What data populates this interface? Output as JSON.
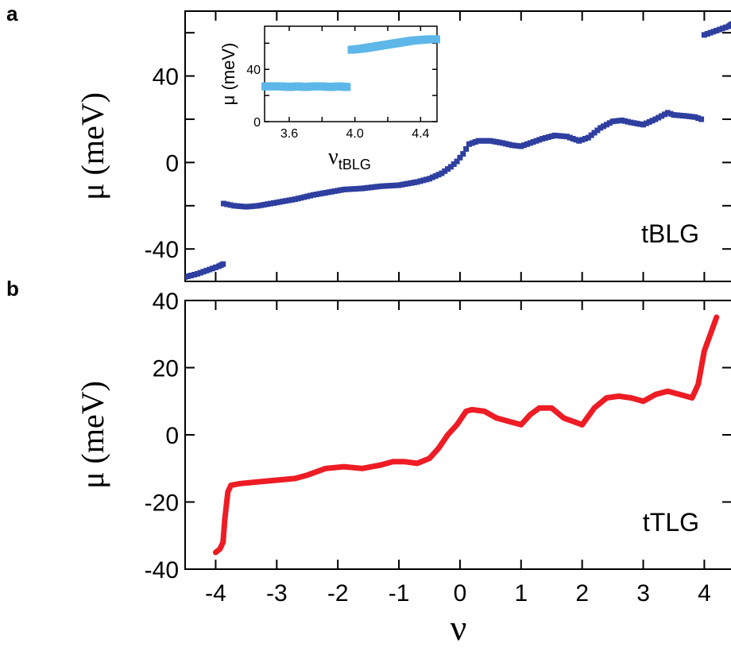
{
  "panels": {
    "a_label": "a",
    "b_label": "b"
  },
  "colors": {
    "tblg": "#2e3fa0",
    "inset": "#5db7e8",
    "ttlg": "#ee1c24"
  },
  "chart_data": [
    {
      "type": "scatter",
      "panel": "a",
      "ylabel": "μ (meV)",
      "xlabel": "",
      "annotation": "tBLG",
      "xlim": [
        -4.5,
        4.45
      ],
      "ylim": [
        -55,
        70
      ],
      "xticks": [
        -4,
        -3,
        -2,
        -1,
        0,
        1,
        2,
        3,
        4
      ],
      "yticks": [
        -40,
        0,
        40
      ],
      "ytick_labels": [
        "-40",
        "0",
        "40"
      ],
      "series": [
        {
          "x": [
            -4.5,
            -4.3,
            -4.1,
            -3.95,
            -3.88,
            -3.87,
            -3.7,
            -3.5,
            -3.3,
            -3.0,
            -2.7,
            -2.4,
            -2.1,
            -1.9,
            -1.6,
            -1.3,
            -1.0,
            -0.7,
            -0.5,
            -0.3,
            -0.15,
            -0.05,
            0.05,
            0.15,
            0.3,
            0.5,
            0.7,
            0.85,
            1.0,
            1.15,
            1.35,
            1.55,
            1.75,
            1.95,
            2.1,
            2.3,
            2.5,
            2.65,
            2.8,
            3.0,
            3.2,
            3.4,
            3.5,
            3.7,
            3.85,
            3.95
          ],
          "y": [
            -53,
            -51.5,
            -49.5,
            -48,
            -47,
            -19,
            -20,
            -20.5,
            -20,
            -18.5,
            -17,
            -15,
            -13.5,
            -12.5,
            -12,
            -11,
            -10.5,
            -9,
            -7.5,
            -5,
            -2,
            0.5,
            4,
            8.5,
            10,
            10,
            9,
            8,
            7.5,
            9,
            11,
            12.5,
            12,
            10,
            11.5,
            16,
            19,
            19.5,
            18.5,
            17.5,
            20,
            23,
            22,
            21.5,
            21,
            20
          ]
        },
        {
          "x": [
            4.0,
            4.1,
            4.2,
            4.3,
            4.4,
            4.45
          ],
          "y": [
            59,
            60,
            61,
            62,
            63,
            64
          ]
        }
      ]
    },
    {
      "type": "scatter",
      "panel": "a-inset",
      "ylabel": "μ (meV)",
      "xlabel": "νtBLG",
      "xlabel_main": "ν",
      "xlabel_sub": "tBLG",
      "xlim": [
        3.45,
        4.5
      ],
      "ylim": [
        0,
        73
      ],
      "xticks": [
        3.6,
        4.0,
        4.4
      ],
      "xtick_labels": [
        "3.6",
        "4.0",
        "4.4"
      ],
      "yticks": [
        0,
        40
      ],
      "ytick_labels": [
        "0",
        "40"
      ],
      "series": [
        {
          "x": [
            3.45,
            3.5,
            3.55,
            3.6,
            3.65,
            3.7,
            3.75,
            3.8,
            3.85,
            3.9,
            3.95
          ],
          "y": [
            27,
            27,
            27,
            26.5,
            27,
            26.5,
            27,
            27,
            26.5,
            27,
            26.5
          ]
        },
        {
          "x": [
            3.98,
            4.05,
            4.1,
            4.15,
            4.2,
            4.25,
            4.3,
            4.35,
            4.4,
            4.45,
            4.5
          ],
          "y": [
            55,
            56,
            57,
            58,
            59,
            60,
            61,
            62,
            62.5,
            63,
            63
          ]
        }
      ]
    },
    {
      "type": "line",
      "panel": "b",
      "ylabel": "μ (meV)",
      "xlabel": "ν",
      "annotation": "tTLG",
      "xlim": [
        -4.5,
        4.45
      ],
      "ylim": [
        -40,
        40
      ],
      "xticks": [
        -4,
        -3,
        -2,
        -1,
        0,
        1,
        2,
        3,
        4
      ],
      "xtick_labels": [
        "-4",
        "-3",
        "-2",
        "-1",
        "0",
        "1",
        "2",
        "3",
        "4"
      ],
      "yticks": [
        -40,
        -20,
        0,
        20,
        40
      ],
      "ytick_labels": [
        "-40",
        "-20",
        "0",
        "20",
        "40"
      ],
      "series": [
        {
          "x": [
            -4.0,
            -3.93,
            -3.88,
            -3.85,
            -3.8,
            -3.75,
            -3.6,
            -3.3,
            -3.0,
            -2.7,
            -2.5,
            -2.2,
            -1.9,
            -1.6,
            -1.3,
            -1.1,
            -0.9,
            -0.7,
            -0.5,
            -0.35,
            -0.2,
            -0.05,
            0.1,
            0.2,
            0.4,
            0.6,
            0.8,
            1.0,
            1.15,
            1.3,
            1.5,
            1.7,
            1.85,
            2.0,
            2.2,
            2.4,
            2.6,
            2.8,
            3.0,
            3.2,
            3.4,
            3.6,
            3.8,
            3.9,
            4.0,
            4.1,
            4.2
          ],
          "y": [
            -35,
            -34,
            -32,
            -25,
            -17,
            -15,
            -14.5,
            -14,
            -13.5,
            -13,
            -12,
            -10,
            -9.5,
            -10,
            -9,
            -8,
            -8,
            -8.5,
            -7,
            -4,
            0,
            3,
            7,
            7.5,
            7,
            5,
            4,
            3,
            6,
            8,
            8,
            5,
            4,
            3,
            8,
            11,
            11.5,
            11,
            10,
            12,
            13,
            12,
            11,
            15,
            25,
            30,
            35
          ]
        }
      ]
    }
  ]
}
